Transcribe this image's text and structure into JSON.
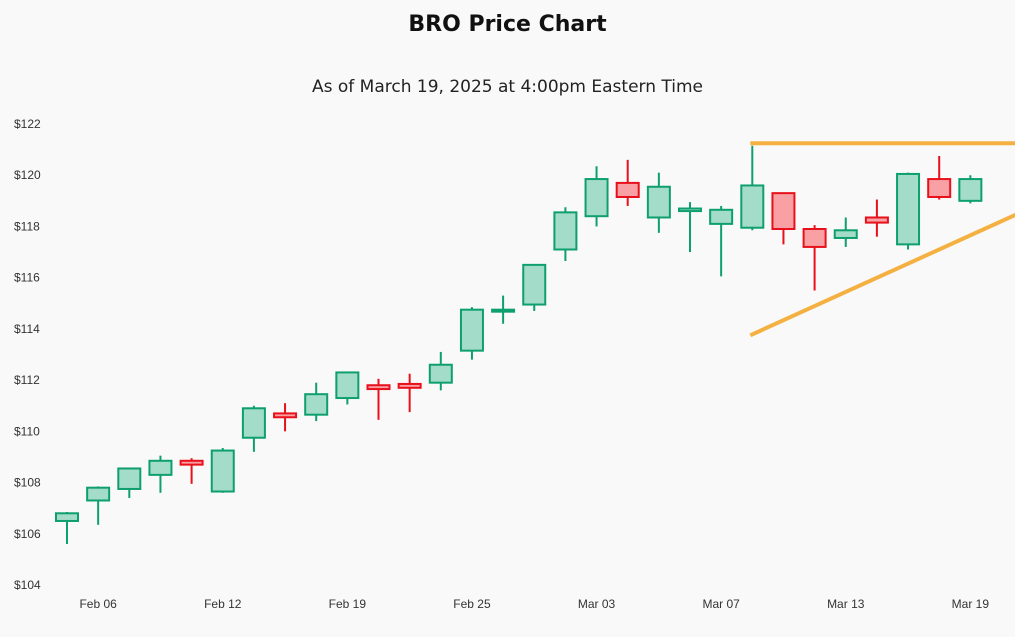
{
  "chart_data": {
    "type": "candlestick",
    "title": "BRO Price Chart",
    "subtitle": "As of March 19, 2025 at 4:00pm Eastern Time",
    "ylim": [
      104,
      122
    ],
    "y_ticks": [
      "$104",
      "$106",
      "$108",
      "$110",
      "$112",
      "$114",
      "$116",
      "$118",
      "$120",
      "$122"
    ],
    "y_tick_values": [
      104,
      106,
      108,
      110,
      112,
      114,
      116,
      118,
      120,
      122
    ],
    "x_tick_labels": [
      {
        "label": "Feb 06",
        "index": 1
      },
      {
        "label": "Feb 12",
        "index": 5
      },
      {
        "label": "Feb 19",
        "index": 9
      },
      {
        "label": "Feb 25",
        "index": 13
      },
      {
        "label": "Mar 03",
        "index": 17
      },
      {
        "label": "Mar 07",
        "index": 21
      },
      {
        "label": "Mar 13",
        "index": 25
      },
      {
        "label": "Mar 19",
        "index": 29
      }
    ],
    "grid": false,
    "colors": {
      "up_fill": "#a3dcc8",
      "up_stroke": "#0e9f6e",
      "down_fill": "#f8a0a4",
      "down_stroke": "#e8101a",
      "trendline": "#f5b042"
    },
    "candles": [
      {
        "o": 106.5,
        "h": 106.85,
        "l": 105.6,
        "c": 106.8
      },
      {
        "o": 107.3,
        "h": 107.85,
        "l": 106.35,
        "c": 107.8
      },
      {
        "o": 107.75,
        "h": 108.55,
        "l": 107.4,
        "c": 108.55
      },
      {
        "o": 108.3,
        "h": 109.05,
        "l": 107.6,
        "c": 108.85
      },
      {
        "o": 108.85,
        "h": 108.95,
        "l": 107.95,
        "c": 108.7
      },
      {
        "o": 107.65,
        "h": 109.35,
        "l": 107.6,
        "c": 109.25
      },
      {
        "o": 109.75,
        "h": 111.0,
        "l": 109.2,
        "c": 110.9
      },
      {
        "o": 110.7,
        "h": 111.1,
        "l": 110.0,
        "c": 110.55
      },
      {
        "o": 110.65,
        "h": 111.9,
        "l": 110.4,
        "c": 111.45
      },
      {
        "o": 111.3,
        "h": 112.3,
        "l": 111.05,
        "c": 112.3
      },
      {
        "o": 111.8,
        "h": 112.05,
        "l": 110.45,
        "c": 111.65
      },
      {
        "o": 111.85,
        "h": 112.25,
        "l": 110.75,
        "c": 111.7
      },
      {
        "o": 111.9,
        "h": 113.1,
        "l": 111.6,
        "c": 112.6
      },
      {
        "o": 113.15,
        "h": 114.85,
        "l": 112.8,
        "c": 114.75
      },
      {
        "o": 114.75,
        "h": 115.3,
        "l": 114.2,
        "c": 114.75
      },
      {
        "o": 114.95,
        "h": 116.5,
        "l": 114.7,
        "c": 116.5
      },
      {
        "o": 117.1,
        "h": 118.75,
        "l": 116.65,
        "c": 118.55
      },
      {
        "o": 118.4,
        "h": 120.35,
        "l": 118.0,
        "c": 119.85
      },
      {
        "o": 119.7,
        "h": 120.6,
        "l": 118.8,
        "c": 119.15
      },
      {
        "o": 118.35,
        "h": 120.1,
        "l": 117.75,
        "c": 119.55
      },
      {
        "o": 118.6,
        "h": 118.95,
        "l": 117.0,
        "c": 118.7
      },
      {
        "o": 118.1,
        "h": 118.8,
        "l": 116.05,
        "c": 118.65
      },
      {
        "o": 117.95,
        "h": 121.15,
        "l": 117.85,
        "c": 119.6
      },
      {
        "o": 119.3,
        "h": 119.3,
        "l": 117.3,
        "c": 117.9
      },
      {
        "o": 117.9,
        "h": 118.05,
        "l": 115.5,
        "c": 117.2
      },
      {
        "o": 117.55,
        "h": 118.35,
        "l": 117.2,
        "c": 117.85
      },
      {
        "o": 118.35,
        "h": 119.05,
        "l": 117.6,
        "c": 118.15
      },
      {
        "o": 117.3,
        "h": 120.1,
        "l": 117.1,
        "c": 120.05
      },
      {
        "o": 119.85,
        "h": 120.75,
        "l": 119.05,
        "c": 119.15
      },
      {
        "o": 119.0,
        "h": 120.0,
        "l": 118.9,
        "c": 119.85
      }
    ],
    "trendlines": [
      {
        "name": "resistance",
        "from": {
          "index": 22,
          "y": 121.25
        },
        "to": {
          "index": 31,
          "y": 121.25
        }
      },
      {
        "name": "support",
        "from": {
          "index": 22,
          "y": 113.75
        },
        "to": {
          "index": 31,
          "y": 118.9
        }
      }
    ]
  }
}
